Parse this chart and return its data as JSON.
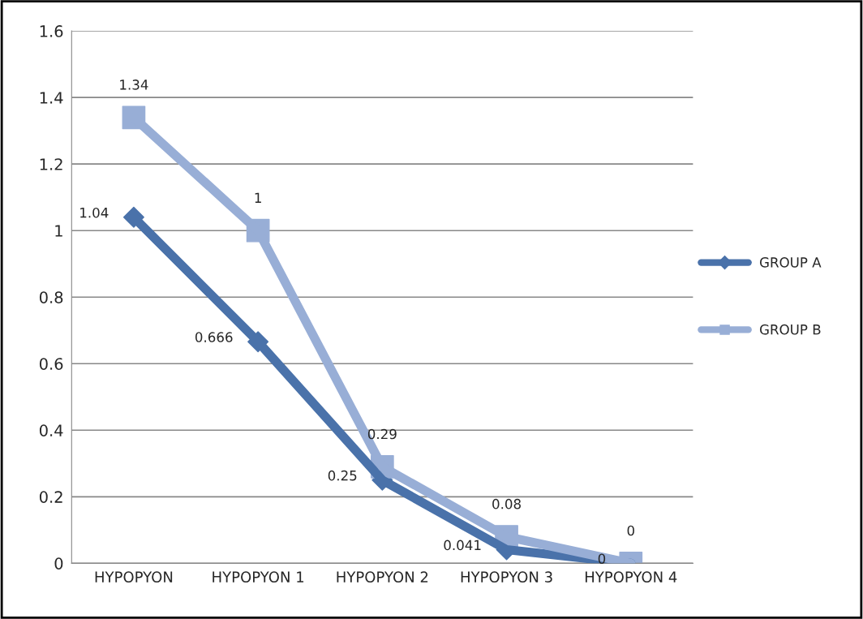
{
  "chart_data": {
    "type": "line",
    "categories": [
      "HYPOPYON",
      "HYPOPYON 1",
      "HYPOPYON 2",
      "HYPOPYON 3",
      "HYPOPYON 4"
    ],
    "series": [
      {
        "name": "GROUP A",
        "color": "#4a72aa",
        "marker": "diamond",
        "values": [
          1.04,
          0.666,
          0.25,
          0.041,
          0
        ]
      },
      {
        "name": "GROUP B",
        "color": "#98aed6",
        "marker": "square",
        "values": [
          1.34,
          1,
          0.29,
          0.08,
          0
        ]
      }
    ],
    "ylim": [
      0,
      1.6
    ],
    "yticks": [
      0,
      0.2,
      0.4,
      0.6,
      0.8,
      1,
      1.2,
      1.4,
      1.6
    ],
    "grid": "y",
    "legend": "right",
    "data_labels": true,
    "line_style": "solid"
  }
}
